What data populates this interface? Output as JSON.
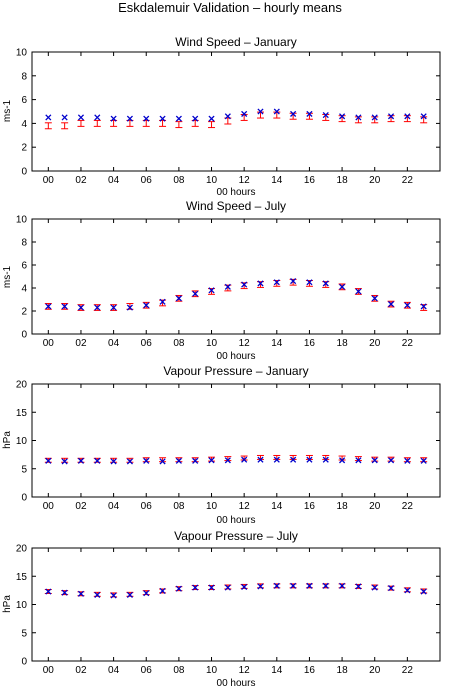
{
  "figure": {
    "title": "Eskdalemuir Validation – hourly means"
  },
  "colors": {
    "observed": "#ff0000",
    "model": "#0000cc",
    "axis": "#000000"
  },
  "chart_data": [
    {
      "type": "scatter",
      "title": "Wind Speed – January",
      "xlabel": "00 hours",
      "ylabel": "ms-1",
      "xlim": [
        -1,
        24
      ],
      "ylim": [
        0,
        10
      ],
      "xticks": [
        "00",
        "02",
        "04",
        "06",
        "08",
        "10",
        "12",
        "14",
        "16",
        "18",
        "20",
        "22"
      ],
      "yticks": [
        "0",
        "2",
        "4",
        "6",
        "8",
        "10"
      ],
      "x": [
        0,
        1,
        2,
        3,
        4,
        5,
        6,
        7,
        8,
        9,
        10,
        11,
        12,
        13,
        14,
        15,
        16,
        17,
        18,
        19,
        20,
        21,
        22,
        23
      ],
      "series": [
        {
          "marker": "errorbar",
          "color": "#ff0000",
          "values": [
            3.8,
            3.8,
            4.0,
            4.0,
            4.0,
            4.0,
            4.0,
            4.0,
            3.9,
            4.0,
            3.9,
            4.2,
            4.5,
            4.7,
            4.7,
            4.6,
            4.6,
            4.5,
            4.4,
            4.3,
            4.3,
            4.4,
            4.4,
            4.3
          ]
        },
        {
          "marker": "x",
          "color": "#0000cc",
          "values": [
            4.5,
            4.5,
            4.5,
            4.5,
            4.4,
            4.4,
            4.4,
            4.4,
            4.4,
            4.4,
            4.4,
            4.6,
            4.8,
            5.0,
            5.0,
            4.8,
            4.8,
            4.7,
            4.6,
            4.5,
            4.5,
            4.6,
            4.6,
            4.6
          ]
        }
      ]
    },
    {
      "type": "scatter",
      "title": "Wind Speed – July",
      "xlabel": "00 hours",
      "ylabel": "ms-1",
      "xlim": [
        -1,
        24
      ],
      "ylim": [
        0,
        10
      ],
      "xticks": [
        "00",
        "02",
        "04",
        "06",
        "08",
        "10",
        "12",
        "14",
        "16",
        "18",
        "20",
        "22"
      ],
      "yticks": [
        "0",
        "2",
        "4",
        "6",
        "8",
        "10"
      ],
      "x": [
        0,
        1,
        2,
        3,
        4,
        5,
        6,
        7,
        8,
        9,
        10,
        11,
        12,
        13,
        14,
        15,
        16,
        17,
        18,
        19,
        20,
        21,
        22,
        23
      ],
      "series": [
        {
          "marker": "errorbar",
          "color": "#ff0000",
          "values": [
            2.4,
            2.4,
            2.3,
            2.3,
            2.3,
            2.4,
            2.5,
            2.7,
            3.1,
            3.5,
            3.7,
            4.0,
            4.2,
            4.3,
            4.4,
            4.5,
            4.4,
            4.3,
            4.1,
            3.7,
            3.1,
            2.6,
            2.5,
            2.3
          ]
        },
        {
          "marker": "x",
          "color": "#0000cc",
          "values": [
            2.4,
            2.4,
            2.3,
            2.3,
            2.3,
            2.3,
            2.5,
            2.8,
            3.1,
            3.5,
            3.8,
            4.1,
            4.3,
            4.4,
            4.5,
            4.6,
            4.5,
            4.4,
            4.1,
            3.7,
            3.1,
            2.6,
            2.5,
            2.4
          ]
        }
      ]
    },
    {
      "type": "scatter",
      "title": "Vapour Pressure – January",
      "xlabel": "00 hours",
      "ylabel": "hPa",
      "xlim": [
        -1,
        24
      ],
      "ylim": [
        0,
        20
      ],
      "xticks": [
        "00",
        "02",
        "04",
        "06",
        "08",
        "10",
        "12",
        "14",
        "16",
        "18",
        "20",
        "22"
      ],
      "yticks": [
        "0",
        "5",
        "10",
        "15",
        "20"
      ],
      "x": [
        0,
        1,
        2,
        3,
        4,
        5,
        6,
        7,
        8,
        9,
        10,
        11,
        12,
        13,
        14,
        15,
        16,
        17,
        18,
        19,
        20,
        21,
        22,
        23
      ],
      "series": [
        {
          "marker": "errorbar",
          "color": "#ff0000",
          "values": [
            6.5,
            6.5,
            6.5,
            6.5,
            6.5,
            6.5,
            6.6,
            6.6,
            6.6,
            6.6,
            6.7,
            6.8,
            6.9,
            7.0,
            7.0,
            7.0,
            7.0,
            7.0,
            6.9,
            6.8,
            6.7,
            6.7,
            6.6,
            6.6
          ]
        },
        {
          "marker": "x",
          "color": "#0000cc",
          "values": [
            6.4,
            6.3,
            6.4,
            6.4,
            6.3,
            6.3,
            6.4,
            6.3,
            6.4,
            6.4,
            6.5,
            6.5,
            6.6,
            6.6,
            6.6,
            6.6,
            6.6,
            6.6,
            6.5,
            6.5,
            6.5,
            6.5,
            6.4,
            6.4
          ]
        }
      ]
    },
    {
      "type": "scatter",
      "title": "Vapour Pressure – July",
      "xlabel": "00 hours",
      "ylabel": "hPa",
      "xlim": [
        -1,
        24
      ],
      "ylim": [
        0,
        20
      ],
      "xticks": [
        "00",
        "02",
        "04",
        "06",
        "08",
        "10",
        "12",
        "14",
        "16",
        "18",
        "20",
        "22"
      ],
      "yticks": [
        "0",
        "5",
        "10",
        "15",
        "20"
      ],
      "x": [
        0,
        1,
        2,
        3,
        4,
        5,
        6,
        7,
        8,
        9,
        10,
        11,
        12,
        13,
        14,
        15,
        16,
        17,
        18,
        19,
        20,
        21,
        22,
        23
      ],
      "series": [
        {
          "marker": "errorbar",
          "color": "#ff0000",
          "values": [
            12.3,
            12.1,
            11.9,
            11.8,
            11.7,
            11.8,
            12.1,
            12.4,
            12.8,
            13.0,
            13.0,
            13.1,
            13.2,
            13.3,
            13.3,
            13.3,
            13.3,
            13.3,
            13.3,
            13.2,
            13.1,
            12.9,
            12.6,
            12.4
          ]
        },
        {
          "marker": "x",
          "color": "#0000cc",
          "values": [
            12.3,
            12.1,
            11.9,
            11.7,
            11.6,
            11.7,
            12.0,
            12.4,
            12.8,
            13.0,
            13.0,
            13.0,
            13.1,
            13.2,
            13.3,
            13.3,
            13.3,
            13.3,
            13.3,
            13.2,
            13.0,
            12.9,
            12.5,
            12.3
          ]
        }
      ]
    }
  ]
}
